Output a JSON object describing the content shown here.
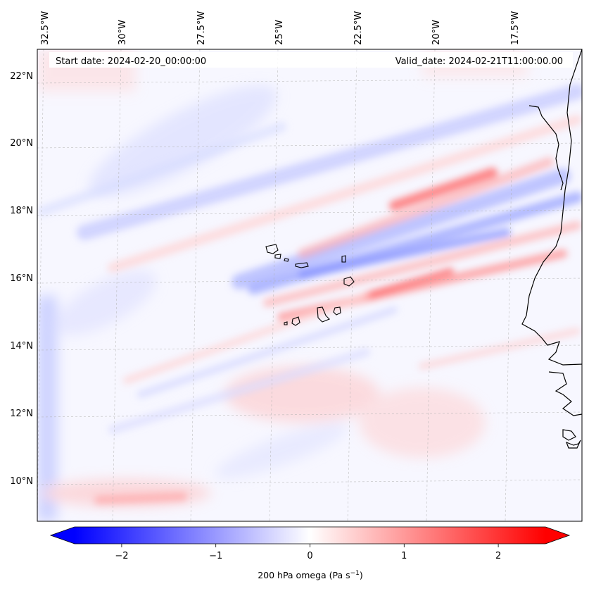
{
  "map": {
    "start_date_label": "Start date: 2024-02-20_00:00:00",
    "valid_date_label": "Valid_date: 2024-02-21T11:00:00.00",
    "lon_labels": [
      "32.5°W",
      "30°W",
      "27.5°W",
      "25°W",
      "22.5°W",
      "20°W",
      "17.5°W"
    ],
    "lat_labels": [
      "22°N",
      "20°N",
      "18°N",
      "16°N",
      "14°N",
      "12°N",
      "10°N"
    ],
    "field": "200 hPa omega",
    "region": "Cape Verde / West Africa coast"
  },
  "colorbar": {
    "title": "200 hPa omega (Pa s",
    "title_sup": "−1",
    "title_close": ")",
    "tick_labels": [
      "−2",
      "−1",
      "0",
      "1",
      "2"
    ],
    "tick_values": [
      -2,
      -1,
      0,
      1,
      2
    ],
    "range": [
      -2.5,
      2.5
    ],
    "colormap": "bwr",
    "low_color": "#0000ff",
    "mid_color": "#ffffff",
    "high_color": "#ff0000",
    "extend": "both"
  },
  "colors": {
    "coast": "#000000",
    "gridline": "#b0b0b0"
  }
}
